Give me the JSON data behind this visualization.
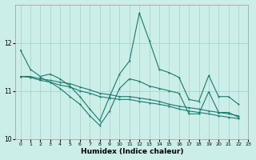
{
  "xlabel": "Humidex (Indice chaleur)",
  "bg_color": "#cceee8",
  "grid_color": "#aad4ce",
  "line_color": "#1a7a6e",
  "xlim": [
    -0.5,
    23
  ],
  "ylim": [
    10,
    12.8
  ],
  "yticks": [
    10,
    11,
    12
  ],
  "xticks": [
    0,
    1,
    2,
    3,
    4,
    5,
    6,
    7,
    8,
    9,
    10,
    11,
    12,
    13,
    14,
    15,
    16,
    17,
    18,
    19,
    20,
    21,
    22,
    23
  ],
  "lines": [
    {
      "x": [
        0,
        1,
        2,
        3,
        4,
        5,
        6,
        7,
        8,
        9,
        10,
        11,
        12,
        13,
        14,
        15,
        16,
        17,
        18,
        19,
        20,
        21,
        22
      ],
      "y": [
        11.85,
        11.45,
        11.3,
        11.35,
        11.25,
        11.1,
        10.88,
        10.62,
        10.38,
        10.88,
        11.35,
        11.62,
        12.62,
        12.05,
        11.45,
        11.38,
        11.28,
        10.82,
        10.78,
        11.32,
        10.88,
        10.88,
        10.72
      ]
    },
    {
      "x": [
        0,
        1,
        2,
        3,
        4,
        5,
        6,
        7,
        8,
        9,
        10,
        11,
        12,
        13,
        14,
        15,
        16,
        17,
        18,
        19,
        20,
        21,
        22
      ],
      "y": [
        11.3,
        11.3,
        11.25,
        11.22,
        11.18,
        11.15,
        11.08,
        11.02,
        10.95,
        10.92,
        10.88,
        10.88,
        10.85,
        10.82,
        10.78,
        10.72,
        10.68,
        10.65,
        10.62,
        10.58,
        10.55,
        10.52,
        10.48
      ]
    },
    {
      "x": [
        0,
        1,
        2,
        3,
        4,
        5,
        6,
        7,
        8,
        9,
        10,
        11,
        12,
        13,
        14,
        15,
        16,
        17,
        18,
        19,
        20,
        21,
        22
      ],
      "y": [
        11.3,
        11.28,
        11.22,
        11.18,
        11.12,
        11.08,
        11.0,
        10.95,
        10.88,
        10.85,
        10.82,
        10.82,
        10.78,
        10.75,
        10.72,
        10.68,
        10.62,
        10.58,
        10.55,
        10.52,
        10.48,
        10.45,
        10.42
      ]
    },
    {
      "x": [
        2,
        3,
        4,
        5,
        6,
        7,
        8,
        9,
        10,
        11,
        12,
        13,
        14,
        15,
        16,
        17,
        18,
        19,
        20,
        21,
        22
      ],
      "y": [
        11.28,
        11.18,
        11.05,
        10.88,
        10.72,
        10.48,
        10.28,
        10.58,
        11.05,
        11.25,
        11.2,
        11.1,
        11.05,
        11.0,
        10.95,
        10.52,
        10.52,
        10.98,
        10.55,
        10.55,
        10.45
      ]
    }
  ]
}
